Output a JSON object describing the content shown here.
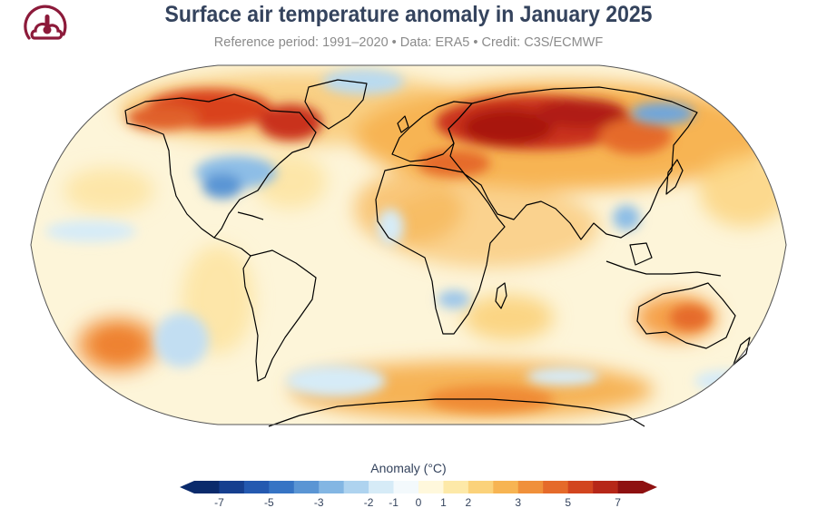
{
  "header": {
    "title": "Surface air temperature anomaly in January 2025",
    "subtitle": "Reference period: 1991–2020 • Data: ERA5 • Credit: C3S/ECMWF"
  },
  "logo": {
    "icon": "cloud-thermometer-icon",
    "color": "#8c1a3a"
  },
  "legend": {
    "title": "Anomaly (°C)",
    "ticks": [
      "-7",
      "-5",
      "-3",
      "-2",
      "-1",
      "0",
      "1",
      "2",
      "3",
      "5",
      "7"
    ],
    "colors": [
      "#0a2a6b",
      "#163f8f",
      "#2459b0",
      "#3674c4",
      "#5a95d4",
      "#83b6e3",
      "#aed3ef",
      "#d6ebf7",
      "#f3f9fc",
      "#fff8dc",
      "#fde9a8",
      "#fbd27a",
      "#f7b452",
      "#f0903a",
      "#e56a2a",
      "#d2451f",
      "#b62718",
      "#8e1010"
    ]
  },
  "palette": {
    "ocean_neutral": "#fdf6d8",
    "warm": "#f5b05a",
    "hot": "#d9421f",
    "very_hot": "#a8150f",
    "cold": "#9cc6ea",
    "very_cold": "#4d86c8",
    "coast": "#000000"
  }
}
